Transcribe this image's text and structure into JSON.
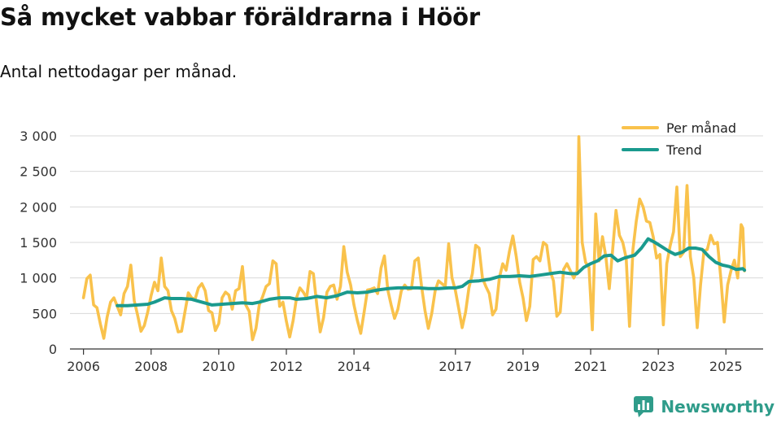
{
  "header": {
    "title": "Så mycket vabbar föräldrarna i Höör",
    "subtitle": "Antal nettodagar per månad."
  },
  "branding": {
    "name": "Newsworthy"
  },
  "colors": {
    "monthly": "#f9c24c",
    "trend": "#1a9a8e",
    "grid": "#d9d9d9",
    "axis": "#333333",
    "brand": "#2f9c8a"
  },
  "chart_data": {
    "type": "line",
    "title": "Så mycket vabbar föräldrarna i Höör",
    "subtitle": "Antal nettodagar per månad.",
    "xlabel": "",
    "ylabel": "",
    "xlim": [
      2005.6,
      2026.1
    ],
    "ylim": [
      0,
      3000
    ],
    "y_ticks": [
      0,
      500,
      1000,
      1500,
      2000,
      2500,
      3000
    ],
    "y_tick_labels": [
      "0",
      "500",
      "1 000",
      "1 500",
      "2 000",
      "2 500",
      "3 000"
    ],
    "x_ticks": [
      2006,
      2008,
      2010,
      2012,
      2014,
      2017,
      2019,
      2021,
      2023,
      2025
    ],
    "x_tick_labels": [
      "2006",
      "2008",
      "2010",
      "2012",
      "2014",
      "2017",
      "2019",
      "2021",
      "2023",
      "2025"
    ],
    "grid": true,
    "legend_position": "top-right",
    "series": [
      {
        "name": "Per månad",
        "points": [
          [
            2006.0,
            720
          ],
          [
            2006.1,
            990
          ],
          [
            2006.2,
            1040
          ],
          [
            2006.3,
            620
          ],
          [
            2006.4,
            580
          ],
          [
            2006.5,
            350
          ],
          [
            2006.6,
            150
          ],
          [
            2006.7,
            450
          ],
          [
            2006.8,
            660
          ],
          [
            2006.9,
            720
          ],
          [
            2007.0,
            600
          ],
          [
            2007.1,
            480
          ],
          [
            2007.2,
            780
          ],
          [
            2007.3,
            880
          ],
          [
            2007.4,
            1180
          ],
          [
            2007.5,
            680
          ],
          [
            2007.6,
            480
          ],
          [
            2007.7,
            250
          ],
          [
            2007.8,
            330
          ],
          [
            2007.9,
            520
          ],
          [
            2008.0,
            750
          ],
          [
            2008.1,
            940
          ],
          [
            2008.2,
            820
          ],
          [
            2008.3,
            1280
          ],
          [
            2008.4,
            880
          ],
          [
            2008.5,
            820
          ],
          [
            2008.6,
            540
          ],
          [
            2008.7,
            430
          ],
          [
            2008.8,
            240
          ],
          [
            2008.9,
            250
          ],
          [
            2009.0,
            520
          ],
          [
            2009.1,
            790
          ],
          [
            2009.2,
            720
          ],
          [
            2009.3,
            700
          ],
          [
            2009.4,
            860
          ],
          [
            2009.5,
            920
          ],
          [
            2009.6,
            820
          ],
          [
            2009.7,
            540
          ],
          [
            2009.8,
            510
          ],
          [
            2009.9,
            260
          ],
          [
            2010.0,
            360
          ],
          [
            2010.1,
            720
          ],
          [
            2010.2,
            800
          ],
          [
            2010.3,
            760
          ],
          [
            2010.4,
            560
          ],
          [
            2010.5,
            820
          ],
          [
            2010.6,
            850
          ],
          [
            2010.7,
            1160
          ],
          [
            2010.8,
            620
          ],
          [
            2010.9,
            530
          ],
          [
            2011.0,
            130
          ],
          [
            2011.1,
            290
          ],
          [
            2011.2,
            620
          ],
          [
            2011.3,
            740
          ],
          [
            2011.4,
            880
          ],
          [
            2011.5,
            920
          ],
          [
            2011.6,
            1240
          ],
          [
            2011.7,
            1200
          ],
          [
            2011.8,
            600
          ],
          [
            2011.9,
            660
          ],
          [
            2012.0,
            390
          ],
          [
            2012.1,
            170
          ],
          [
            2012.2,
            400
          ],
          [
            2012.3,
            720
          ],
          [
            2012.4,
            860
          ],
          [
            2012.5,
            800
          ],
          [
            2012.6,
            720
          ],
          [
            2012.7,
            1090
          ],
          [
            2012.8,
            1060
          ],
          [
            2012.9,
            620
          ],
          [
            2013.0,
            240
          ],
          [
            2013.1,
            440
          ],
          [
            2013.2,
            800
          ],
          [
            2013.3,
            880
          ],
          [
            2013.4,
            900
          ],
          [
            2013.5,
            700
          ],
          [
            2013.6,
            880
          ],
          [
            2013.7,
            1440
          ],
          [
            2013.8,
            1080
          ],
          [
            2013.9,
            900
          ],
          [
            2014.0,
            620
          ],
          [
            2014.1,
            400
          ],
          [
            2014.2,
            220
          ],
          [
            2014.3,
            520
          ],
          [
            2014.4,
            830
          ],
          [
            2014.5,
            840
          ],
          [
            2014.6,
            860
          ],
          [
            2014.7,
            780
          ],
          [
            2014.8,
            1140
          ],
          [
            2014.9,
            1310
          ],
          [
            2015.0,
            830
          ],
          [
            2015.1,
            620
          ],
          [
            2015.2,
            430
          ],
          [
            2015.3,
            560
          ],
          [
            2015.4,
            820
          ],
          [
            2015.5,
            900
          ],
          [
            2015.6,
            840
          ],
          [
            2015.7,
            850
          ],
          [
            2015.8,
            1240
          ],
          [
            2015.9,
            1280
          ],
          [
            2016.0,
            880
          ],
          [
            2016.1,
            540
          ],
          [
            2016.2,
            290
          ],
          [
            2016.3,
            500
          ],
          [
            2016.4,
            820
          ],
          [
            2016.5,
            960
          ],
          [
            2016.6,
            920
          ],
          [
            2016.7,
            880
          ],
          [
            2016.8,
            1480
          ],
          [
            2016.9,
            1000
          ],
          [
            2017.0,
            820
          ],
          [
            2017.1,
            560
          ],
          [
            2017.2,
            300
          ],
          [
            2017.3,
            520
          ],
          [
            2017.4,
            860
          ],
          [
            2017.5,
            1060
          ],
          [
            2017.6,
            1460
          ],
          [
            2017.7,
            1420
          ],
          [
            2017.8,
            1000
          ],
          [
            2017.9,
            880
          ],
          [
            2018.0,
            780
          ],
          [
            2018.1,
            480
          ],
          [
            2018.2,
            560
          ],
          [
            2018.3,
            1000
          ],
          [
            2018.4,
            1200
          ],
          [
            2018.5,
            1110
          ],
          [
            2018.6,
            1380
          ],
          [
            2018.7,
            1590
          ],
          [
            2018.8,
            1300
          ],
          [
            2018.9,
            940
          ],
          [
            2019.0,
            720
          ],
          [
            2019.1,
            400
          ],
          [
            2019.2,
            600
          ],
          [
            2019.3,
            1260
          ],
          [
            2019.4,
            1300
          ],
          [
            2019.5,
            1240
          ],
          [
            2019.6,
            1500
          ],
          [
            2019.7,
            1460
          ],
          [
            2019.8,
            1100
          ],
          [
            2019.9,
            960
          ],
          [
            2020.0,
            460
          ],
          [
            2020.1,
            520
          ],
          [
            2020.2,
            1120
          ],
          [
            2020.3,
            1200
          ],
          [
            2020.4,
            1100
          ],
          [
            2020.5,
            1000
          ],
          [
            2020.6,
            1100
          ],
          [
            2020.65,
            2990
          ],
          [
            2020.75,
            1500
          ],
          [
            2020.85,
            1220
          ],
          [
            2020.95,
            1150
          ],
          [
            2021.05,
            270
          ],
          [
            2021.15,
            1900
          ],
          [
            2021.25,
            1240
          ],
          [
            2021.35,
            1580
          ],
          [
            2021.45,
            1300
          ],
          [
            2021.55,
            850
          ],
          [
            2021.65,
            1400
          ],
          [
            2021.75,
            1950
          ],
          [
            2021.85,
            1600
          ],
          [
            2021.95,
            1500
          ],
          [
            2022.05,
            1280
          ],
          [
            2022.15,
            320
          ],
          [
            2022.25,
            1400
          ],
          [
            2022.35,
            1800
          ],
          [
            2022.45,
            2110
          ],
          [
            2022.55,
            2000
          ],
          [
            2022.65,
            1800
          ],
          [
            2022.75,
            1780
          ],
          [
            2022.85,
            1580
          ],
          [
            2022.95,
            1280
          ],
          [
            2023.05,
            1330
          ],
          [
            2023.15,
            340
          ],
          [
            2023.25,
            1200
          ],
          [
            2023.35,
            1450
          ],
          [
            2023.45,
            1650
          ],
          [
            2023.55,
            2280
          ],
          [
            2023.65,
            1300
          ],
          [
            2023.75,
            1360
          ],
          [
            2023.85,
            2300
          ],
          [
            2023.95,
            1300
          ],
          [
            2024.05,
            1000
          ],
          [
            2024.15,
            300
          ],
          [
            2024.25,
            900
          ],
          [
            2024.35,
            1380
          ],
          [
            2024.45,
            1400
          ],
          [
            2024.55,
            1600
          ],
          [
            2024.65,
            1480
          ],
          [
            2024.75,
            1500
          ],
          [
            2024.85,
            1000
          ],
          [
            2024.95,
            380
          ],
          [
            2025.05,
            900
          ],
          [
            2025.15,
            1100
          ],
          [
            2025.25,
            1250
          ],
          [
            2025.35,
            1000
          ],
          [
            2025.45,
            1750
          ],
          [
            2025.5,
            1700
          ],
          [
            2025.55,
            1100
          ]
        ]
      },
      {
        "name": "Trend",
        "points": [
          [
            2007.0,
            610
          ],
          [
            2007.3,
            610
          ],
          [
            2007.6,
            620
          ],
          [
            2007.9,
            630
          ],
          [
            2008.1,
            660
          ],
          [
            2008.4,
            720
          ],
          [
            2008.6,
            710
          ],
          [
            2008.9,
            710
          ],
          [
            2009.2,
            700
          ],
          [
            2009.5,
            660
          ],
          [
            2009.8,
            620
          ],
          [
            2010.1,
            630
          ],
          [
            2010.4,
            640
          ],
          [
            2010.7,
            650
          ],
          [
            2011.0,
            640
          ],
          [
            2011.2,
            660
          ],
          [
            2011.5,
            700
          ],
          [
            2011.8,
            720
          ],
          [
            2012.1,
            720
          ],
          [
            2012.3,
            700
          ],
          [
            2012.6,
            710
          ],
          [
            2012.9,
            740
          ],
          [
            2013.2,
            720
          ],
          [
            2013.5,
            750
          ],
          [
            2013.8,
            800
          ],
          [
            2014.1,
            790
          ],
          [
            2014.4,
            800
          ],
          [
            2014.7,
            830
          ],
          [
            2015.0,
            850
          ],
          [
            2015.3,
            860
          ],
          [
            2015.6,
            860
          ],
          [
            2015.9,
            860
          ],
          [
            2016.2,
            850
          ],
          [
            2016.5,
            850
          ],
          [
            2016.8,
            860
          ],
          [
            2017.0,
            860
          ],
          [
            2017.2,
            880
          ],
          [
            2017.4,
            950
          ],
          [
            2017.7,
            960
          ],
          [
            2018.0,
            980
          ],
          [
            2018.3,
            1020
          ],
          [
            2018.6,
            1020
          ],
          [
            2018.9,
            1030
          ],
          [
            2019.2,
            1020
          ],
          [
            2019.5,
            1040
          ],
          [
            2019.8,
            1060
          ],
          [
            2020.1,
            1080
          ],
          [
            2020.4,
            1060
          ],
          [
            2020.6,
            1060
          ],
          [
            2020.8,
            1150
          ],
          [
            2021.0,
            1200
          ],
          [
            2021.2,
            1240
          ],
          [
            2021.4,
            1310
          ],
          [
            2021.6,
            1320
          ],
          [
            2021.8,
            1240
          ],
          [
            2022.0,
            1280
          ],
          [
            2022.3,
            1320
          ],
          [
            2022.5,
            1420
          ],
          [
            2022.7,
            1550
          ],
          [
            2022.9,
            1500
          ],
          [
            2023.1,
            1440
          ],
          [
            2023.3,
            1380
          ],
          [
            2023.5,
            1330
          ],
          [
            2023.7,
            1360
          ],
          [
            2023.9,
            1420
          ],
          [
            2024.1,
            1420
          ],
          [
            2024.3,
            1400
          ],
          [
            2024.5,
            1300
          ],
          [
            2024.7,
            1220
          ],
          [
            2024.9,
            1180
          ],
          [
            2025.1,
            1160
          ],
          [
            2025.3,
            1120
          ],
          [
            2025.5,
            1130
          ],
          [
            2025.55,
            1110
          ]
        ]
      }
    ]
  }
}
